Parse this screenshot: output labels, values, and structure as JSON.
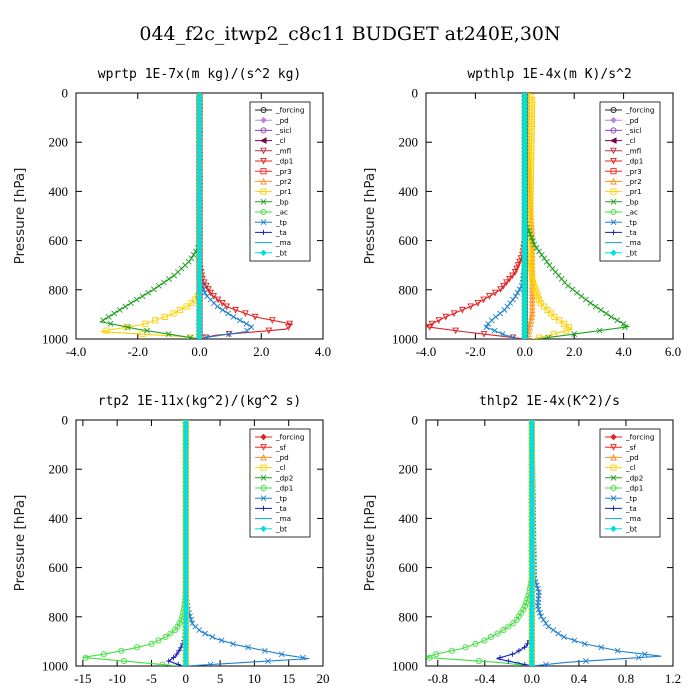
{
  "figure_title": "044_f2c_itwp2_c8c11  BUDGET at240E,30N",
  "chart_data": [
    {
      "type": "line",
      "title": "wprtp  1E-7x(m kg)/(s^2 kg)",
      "ylabel": "Pressure [hPa]",
      "xlim": [
        -4,
        4
      ],
      "ylim": [
        1000,
        0
      ],
      "xticks": [
        "-4.0",
        "-2.0",
        "0.0",
        "2.0",
        "4.0"
      ],
      "xtick_values": [
        -4,
        -2,
        0,
        2,
        4
      ],
      "yticks": [
        "0",
        "200",
        "400",
        "600",
        "800",
        "1000"
      ],
      "ytick_values": [
        0,
        200,
        400,
        600,
        800,
        1000
      ],
      "legend_position": "top-right",
      "series": [
        {
          "name": "_forcing",
          "color": "#222222",
          "marker": "circle",
          "x": [
            0,
            0,
            0
          ],
          "y": [
            0,
            500,
            1000
          ]
        },
        {
          "name": "_pd",
          "color": "#c080e0",
          "marker": "diamond",
          "x": [
            0,
            0,
            0
          ],
          "y": [
            0,
            500,
            1000
          ]
        },
        {
          "name": "_sicl",
          "color": "#9040c0",
          "marker": "circle",
          "x": [
            0,
            0,
            0
          ],
          "y": [
            0,
            500,
            1000
          ]
        },
        {
          "name": "_cl",
          "color": "#800040",
          "marker": "triangle-left",
          "x": [
            0,
            0,
            0
          ],
          "y": [
            0,
            500,
            1000
          ]
        },
        {
          "name": "_mfl",
          "color": "#c0304a",
          "marker": "triangle-down",
          "x": [
            0,
            0,
            0
          ],
          "y": [
            0,
            500,
            1000
          ]
        },
        {
          "name": "_dp1",
          "color": "#e02020",
          "marker": "triangle-down",
          "x": [
            0,
            0,
            0,
            0.1,
            0.4,
            0.9,
            1.8,
            3.0,
            2.8,
            0.5,
            0
          ],
          "y": [
            0,
            600,
            700,
            760,
            820,
            870,
            910,
            940,
            960,
            985,
            1000
          ]
        },
        {
          "name": "_pr3",
          "color": "#ff2020",
          "marker": "square",
          "x": [
            0,
            0,
            0
          ],
          "y": [
            0,
            500,
            1000
          ]
        },
        {
          "name": "_pr2",
          "color": "#ff9020",
          "marker": "triangle-up",
          "x": [
            0,
            0,
            0
          ],
          "y": [
            0,
            500,
            1000
          ]
        },
        {
          "name": "_pr1",
          "color": "#ffd000",
          "marker": "square",
          "x": [
            0,
            0,
            0,
            -0.3,
            -0.9,
            -1.8,
            -3.2,
            -0.5,
            0
          ],
          "y": [
            0,
            750,
            820,
            860,
            900,
            940,
            970,
            990,
            1000
          ]
        },
        {
          "name": "_bp",
          "color": "#20a020",
          "marker": "x",
          "x": [
            0,
            0,
            -0.3,
            -0.8,
            -1.5,
            -2.3,
            -3.2,
            -2.0,
            -0.5,
            0
          ],
          "y": [
            0,
            620,
            680,
            740,
            800,
            860,
            930,
            960,
            990,
            1000
          ]
        },
        {
          "name": "_ac",
          "color": "#40e040",
          "marker": "circle",
          "x": [
            0,
            0,
            0
          ],
          "y": [
            0,
            500,
            1000
          ]
        },
        {
          "name": "_tp",
          "color": "#1f7fd0",
          "marker": "x",
          "x": [
            0,
            0,
            0.2,
            0.6,
            1.1,
            1.7,
            1.5,
            0.4,
            0
          ],
          "y": [
            0,
            750,
            820,
            870,
            910,
            950,
            970,
            990,
            1000
          ]
        },
        {
          "name": "_ta",
          "color": "#1020c0",
          "marker": "plus",
          "x": [
            0,
            0,
            0
          ],
          "y": [
            0,
            500,
            1000
          ]
        },
        {
          "name": "_ma",
          "color": "#10a0c0",
          "marker": "none",
          "x": [
            0,
            0,
            0
          ],
          "y": [
            0,
            500,
            1000
          ]
        },
        {
          "name": "_bt",
          "color": "#00e0e0",
          "marker": "diamond",
          "x": [
            0,
            0,
            0
          ],
          "y": [
            0,
            500,
            1000
          ]
        }
      ]
    },
    {
      "type": "line",
      "title": "wpthlp  1E-4x(m K)/s^2",
      "ylabel": "Pressure [hPa]",
      "xlim": [
        -4,
        6
      ],
      "ylim": [
        1000,
        0
      ],
      "xticks": [
        "-4.0",
        "-2.0",
        "0.0",
        "2.0",
        "4.0",
        "6.0"
      ],
      "xtick_values": [
        -4,
        -2,
        0,
        2,
        4,
        6
      ],
      "yticks": [
        "0",
        "200",
        "400",
        "600",
        "800",
        "1000"
      ],
      "ytick_values": [
        0,
        200,
        400,
        600,
        800,
        1000
      ],
      "legend_position": "top-right",
      "series": [
        {
          "name": "_forcing",
          "color": "#222222",
          "marker": "circle",
          "x": [
            0,
            0,
            0
          ],
          "y": [
            0,
            500,
            1000
          ]
        },
        {
          "name": "_pd",
          "color": "#c080e0",
          "marker": "diamond",
          "x": [
            0,
            0,
            0
          ],
          "y": [
            0,
            500,
            1000
          ]
        },
        {
          "name": "_sicl",
          "color": "#9040c0",
          "marker": "circle",
          "x": [
            0,
            0,
            0
          ],
          "y": [
            0,
            500,
            1000
          ]
        },
        {
          "name": "_cl",
          "color": "#800040",
          "marker": "triangle-left",
          "x": [
            0,
            0,
            0
          ],
          "y": [
            0,
            500,
            1000
          ]
        },
        {
          "name": "_mfl",
          "color": "#c0304a",
          "marker": "triangle-down",
          "x": [
            0,
            0,
            0
          ],
          "y": [
            0,
            500,
            1000
          ]
        },
        {
          "name": "_dp1",
          "color": "#e02020",
          "marker": "triangle-down",
          "x": [
            0,
            0,
            -0.1,
            -0.4,
            -1.0,
            -2.0,
            -3.2,
            -4.0,
            -2.5,
            -0.8,
            0
          ],
          "y": [
            0,
            600,
            660,
            730,
            800,
            860,
            910,
            950,
            970,
            990,
            1000
          ]
        },
        {
          "name": "_pr3",
          "color": "#ff2020",
          "marker": "square",
          "x": [
            0,
            0,
            0
          ],
          "y": [
            0,
            500,
            1000
          ]
        },
        {
          "name": "_pr2",
          "color": "#ff9020",
          "marker": "triangle-up",
          "x": [
            0.1,
            0.1,
            0.3,
            0.3,
            0.1
          ],
          "y": [
            0,
            200,
            600,
            900,
            1000
          ]
        },
        {
          "name": "_pr1",
          "color": "#ffd000",
          "marker": "square",
          "x": [
            0.1,
            0.3,
            0.2,
            0.3,
            0.6,
            1.2,
            1.9,
            1.0,
            0.3
          ],
          "y": [
            0,
            20,
            600,
            760,
            850,
            910,
            960,
            985,
            1000
          ]
        },
        {
          "name": "_bp",
          "color": "#20a020",
          "marker": "x",
          "x": [
            0,
            0,
            0.4,
            1.0,
            1.7,
            2.6,
            3.5,
            4.2,
            2.0,
            0.5
          ],
          "y": [
            0,
            520,
            620,
            700,
            780,
            850,
            910,
            950,
            980,
            1000
          ]
        },
        {
          "name": "_ac",
          "color": "#40e040",
          "marker": "circle",
          "x": [
            0,
            0,
            0
          ],
          "y": [
            0,
            500,
            1000
          ]
        },
        {
          "name": "_tp",
          "color": "#1f7fd0",
          "marker": "x",
          "x": [
            0,
            0,
            -0.1,
            -0.4,
            -0.8,
            -1.3,
            -1.6,
            -0.9,
            -0.3
          ],
          "y": [
            0,
            700,
            780,
            830,
            880,
            920,
            950,
            980,
            1000
          ]
        },
        {
          "name": "_ta",
          "color": "#1020c0",
          "marker": "plus",
          "x": [
            0,
            0,
            0
          ],
          "y": [
            0,
            500,
            1000
          ]
        },
        {
          "name": "_ma",
          "color": "#10a0c0",
          "marker": "none",
          "x": [
            0,
            0,
            0
          ],
          "y": [
            0,
            500,
            1000
          ]
        },
        {
          "name": "_bt",
          "color": "#00e0e0",
          "marker": "diamond",
          "x": [
            0,
            0,
            0
          ],
          "y": [
            0,
            500,
            1000
          ]
        }
      ]
    },
    {
      "type": "line",
      "title": "rtp2  1E-11x(kg^2)/(kg^2 s)",
      "ylabel": "Pressure [hPa]",
      "xlim": [
        -16,
        20
      ],
      "ylim": [
        1000,
        0
      ],
      "xticks": [
        "-15",
        "-10",
        "-5",
        "0",
        "5",
        "10",
        "15",
        "20"
      ],
      "xtick_values": [
        -15,
        -10,
        -5,
        0,
        5,
        10,
        15,
        20
      ],
      "yticks": [
        "0",
        "200",
        "400",
        "600",
        "800",
        "1000"
      ],
      "ytick_values": [
        0,
        200,
        400,
        600,
        800,
        1000
      ],
      "legend_position": "top-right",
      "series": [
        {
          "name": "_forcing",
          "color": "#e02020",
          "marker": "diamond",
          "x": [
            0,
            0,
            0
          ],
          "y": [
            0,
            500,
            1000
          ]
        },
        {
          "name": "_sf",
          "color": "#ff2020",
          "marker": "triangle-down",
          "x": [
            0,
            0,
            0
          ],
          "y": [
            0,
            500,
            1000
          ]
        },
        {
          "name": "_pd",
          "color": "#ff9020",
          "marker": "triangle-up",
          "x": [
            0,
            0,
            0
          ],
          "y": [
            0,
            500,
            1000
          ]
        },
        {
          "name": "_cl",
          "color": "#ffd000",
          "marker": "square",
          "x": [
            0,
            0,
            0
          ],
          "y": [
            0,
            500,
            1000
          ]
        },
        {
          "name": "_dp2",
          "color": "#20a020",
          "marker": "x",
          "x": [
            0,
            0,
            0
          ],
          "y": [
            0,
            500,
            1000
          ]
        },
        {
          "name": "_dp1",
          "color": "#40e040",
          "marker": "circle",
          "x": [
            0,
            0,
            -0.2,
            -0.6,
            -1.4,
            -2.8,
            -5.0,
            -8.0,
            -11.5,
            -15.0,
            -7.0,
            -1.0
          ],
          "y": [
            0,
            700,
            760,
            810,
            850,
            880,
            910,
            930,
            950,
            965,
            985,
            1000
          ]
        },
        {
          "name": "_tp",
          "color": "#1f7fd0",
          "marker": "x",
          "x": [
            0,
            0,
            0.4,
            1.0,
            2.2,
            4.5,
            7.5,
            11.0,
            14.5,
            18.0,
            6.0,
            0
          ],
          "y": [
            0,
            720,
            780,
            830,
            860,
            890,
            915,
            935,
            955,
            970,
            990,
            1000
          ]
        },
        {
          "name": "_ta",
          "color": "#1020c0",
          "marker": "plus",
          "x": [
            0,
            0,
            -0.3,
            -0.8,
            -1.5,
            -2.5,
            -0.5
          ],
          "y": [
            0,
            850,
            900,
            930,
            960,
            980,
            1000
          ]
        },
        {
          "name": "_ma",
          "color": "#10a0c0",
          "marker": "none",
          "x": [
            0,
            0,
            0
          ],
          "y": [
            0,
            500,
            1000
          ]
        },
        {
          "name": "_bt",
          "color": "#00e0e0",
          "marker": "diamond",
          "x": [
            0,
            0,
            0
          ],
          "y": [
            0,
            500,
            1000
          ]
        }
      ]
    },
    {
      "type": "line",
      "title": "thlp2  1E-4x(K^2)/s",
      "ylabel": "Pressure [hPa]",
      "xlim": [
        -0.9,
        1.2
      ],
      "ylim": [
        1000,
        0
      ],
      "xticks": [
        "-0.8",
        "-0.4",
        "0.0",
        "0.4",
        "0.8",
        "1.2"
      ],
      "xtick_values": [
        -0.8,
        -0.4,
        0.0,
        0.4,
        0.8,
        1.2
      ],
      "yticks": [
        "0",
        "200",
        "400",
        "600",
        "800",
        "1000"
      ],
      "ytick_values": [
        0,
        200,
        400,
        600,
        800,
        1000
      ],
      "legend_position": "top-right",
      "series": [
        {
          "name": "_forcing",
          "color": "#e02020",
          "marker": "diamond",
          "x": [
            0,
            0,
            0
          ],
          "y": [
            0,
            500,
            1000
          ]
        },
        {
          "name": "_sf",
          "color": "#ff2020",
          "marker": "triangle-down",
          "x": [
            0,
            0,
            0
          ],
          "y": [
            0,
            500,
            1000
          ]
        },
        {
          "name": "_pd",
          "color": "#ff9020",
          "marker": "triangle-up",
          "x": [
            0,
            0,
            0
          ],
          "y": [
            0,
            500,
            1000
          ]
        },
        {
          "name": "_cl",
          "color": "#ffd000",
          "marker": "square",
          "x": [
            0,
            0,
            0
          ],
          "y": [
            0,
            500,
            1000
          ]
        },
        {
          "name": "_dp2",
          "color": "#20a020",
          "marker": "x",
          "x": [
            0,
            0,
            0
          ],
          "y": [
            0,
            500,
            1000
          ]
        },
        {
          "name": "_dp1",
          "color": "#40e040",
          "marker": "circle",
          "x": [
            0,
            0,
            -0.02,
            -0.06,
            -0.14,
            -0.26,
            -0.42,
            -0.6,
            -0.8,
            -0.9,
            -0.3,
            0
          ],
          "y": [
            0,
            640,
            700,
            760,
            820,
            860,
            900,
            930,
            950,
            965,
            985,
            1000
          ]
        },
        {
          "name": "_tp",
          "color": "#1f7fd0",
          "marker": "x",
          "x": [
            0,
            0.02,
            0.06,
            0.05,
            0.08,
            0.14,
            0.26,
            0.45,
            0.75,
            1.1,
            0.3,
            0
          ],
          "y": [
            0,
            640,
            700,
            760,
            800,
            840,
            880,
            910,
            940,
            960,
            985,
            1000
          ]
        },
        {
          "name": "_ta",
          "color": "#1020c0",
          "marker": "plus",
          "x": [
            0,
            0,
            -0.05,
            -0.15,
            -0.3,
            -0.1,
            0
          ],
          "y": [
            0,
            880,
            920,
            950,
            970,
            990,
            1000
          ]
        },
        {
          "name": "_ma",
          "color": "#10a0c0",
          "marker": "none",
          "x": [
            0,
            0,
            0
          ],
          "y": [
            0,
            500,
            1000
          ]
        },
        {
          "name": "_bt",
          "color": "#00e0e0",
          "marker": "diamond",
          "x": [
            0,
            0,
            0
          ],
          "y": [
            0,
            500,
            1000
          ]
        }
      ]
    }
  ]
}
